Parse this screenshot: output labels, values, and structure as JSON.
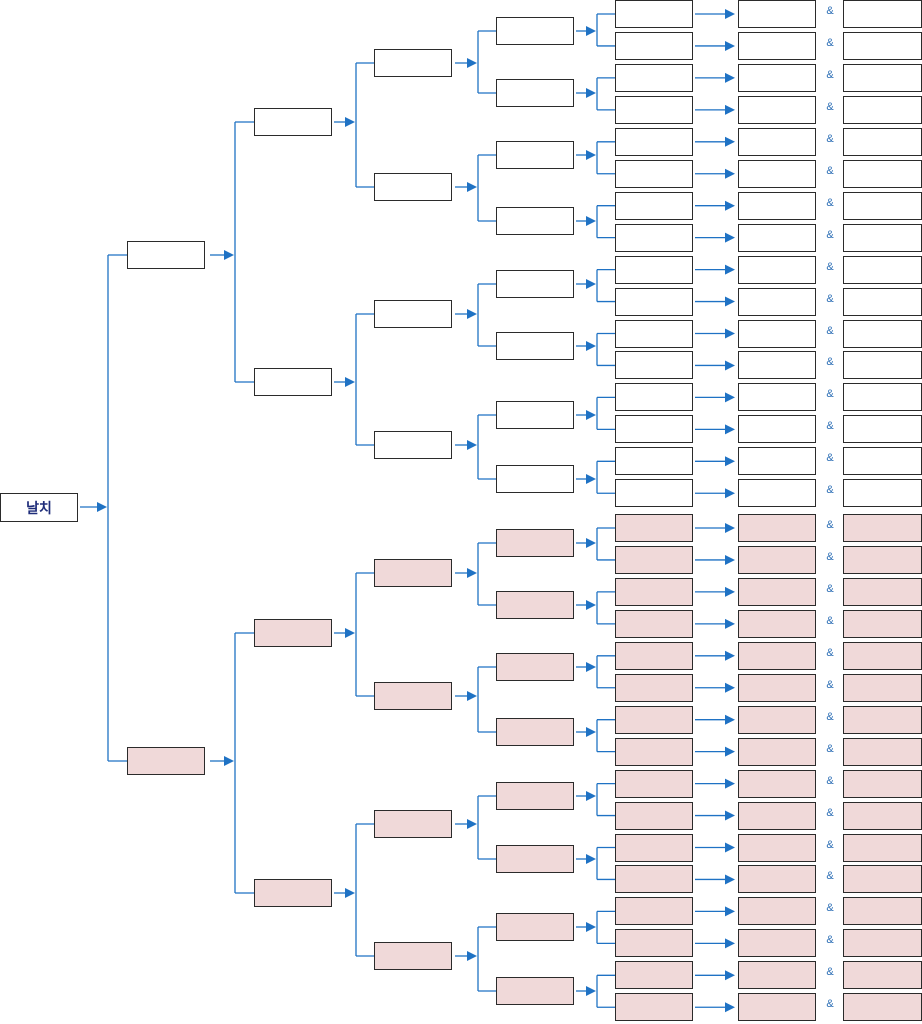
{
  "root": {
    "label": "날치"
  },
  "connector_symbol": "&",
  "colors": {
    "line": "#1f72c4",
    "box_border": "#2b2b2b",
    "upper_branch_fill": "#ffffff",
    "lower_branch_fill": "#f0d9d9",
    "root_text": "#1f2d7a"
  }
}
